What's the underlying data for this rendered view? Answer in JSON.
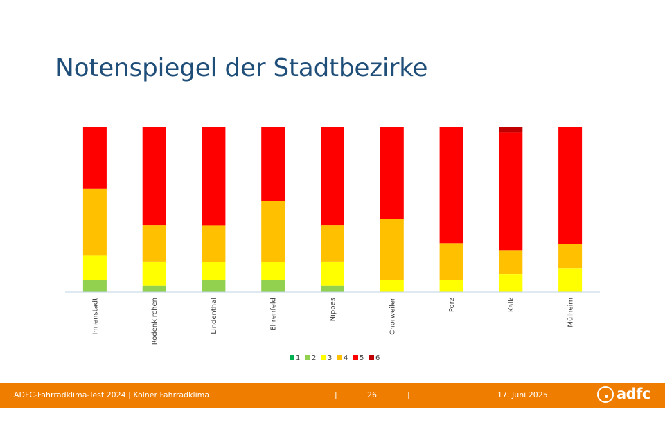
{
  "slide": {
    "title": "Notenspiegel der Stadtbezirke"
  },
  "chart_data": {
    "type": "bar",
    "stacked": true,
    "normalized_percent": true,
    "title": "",
    "xlabel": "",
    "ylabel": "",
    "ylim": [
      0,
      100
    ],
    "grid": false,
    "legend_position": "bottom",
    "categories": [
      "Innenstadt",
      "Rodenkirchen",
      "Lindenthal",
      "Ehrenfeld",
      "Nippes",
      "Chorweiler",
      "Porz",
      "Kalk",
      "Mülheim"
    ],
    "series": [
      {
        "name": "1",
        "color": "#00B050",
        "values": [
          0,
          0,
          0,
          0,
          0,
          0,
          0,
          0,
          0
        ]
      },
      {
        "name": "2",
        "color": "#92D050",
        "values": [
          7.5,
          3.9,
          7.5,
          7.5,
          3.9,
          0,
          0,
          0,
          0
        ]
      },
      {
        "name": "3",
        "color": "#FFFF00",
        "values": [
          14.6,
          14.6,
          10.9,
          10.9,
          14.6,
          7.5,
          7.5,
          10.9,
          14.6
        ]
      },
      {
        "name": "4",
        "color": "#FFC000",
        "values": [
          40.6,
          22.2,
          22.2,
          36.8,
          22.2,
          36.8,
          22.2,
          14.6,
          14.6
        ]
      },
      {
        "name": "5",
        "color": "#FF0000",
        "values": [
          37.3,
          59.3,
          59.4,
          44.8,
          59.3,
          55.7,
          70.3,
          71.4,
          70.8
        ]
      },
      {
        "name": "6",
        "color": "#C00000",
        "values": [
          0,
          0,
          0,
          0,
          0,
          0,
          0,
          3.1,
          0
        ]
      }
    ]
  },
  "footer": {
    "left_text": "ADFC-Fahrradklima-Test 2024 | Kölner Fahrradklima",
    "separator": "|",
    "page_number": "26",
    "date": "17. Juni 2025",
    "logo_text": "adfc",
    "background_color": "#EF7D00"
  }
}
